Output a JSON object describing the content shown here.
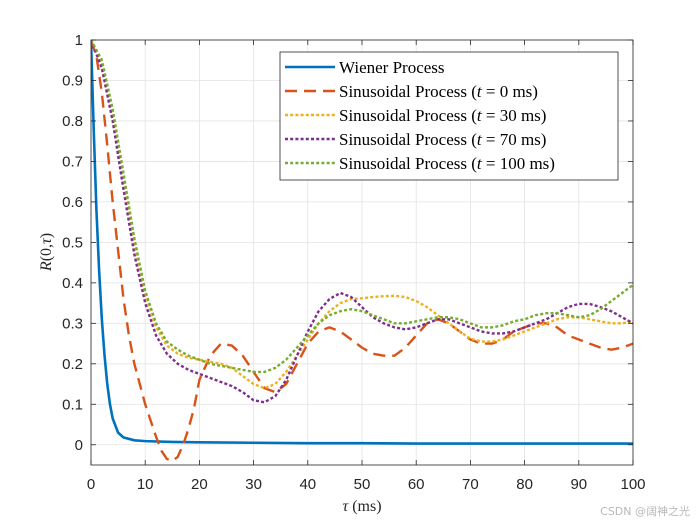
{
  "chart_data": {
    "type": "line",
    "title": "",
    "xlabel_var": "τ",
    "xlabel_unit": " (ms)",
    "ylabel_func": "R",
    "ylabel_args": "(0,",
    "ylabel_var": "τ",
    "ylabel_close": ")",
    "xlim": [
      0,
      100
    ],
    "ylim": [
      -0.05,
      1
    ],
    "xticks": [
      0,
      10,
      20,
      30,
      40,
      50,
      60,
      70,
      80,
      90,
      100
    ],
    "yticks": [
      0,
      0.1,
      0.2,
      0.3,
      0.4,
      0.5,
      0.6,
      0.7,
      0.8,
      0.9,
      1
    ],
    "ytick_labels": [
      "0",
      "0.1",
      "0.2",
      "0.3",
      "0.4",
      "0.5",
      "0.6",
      "0.7",
      "0.8",
      "0.9",
      "1"
    ],
    "grid": true,
    "legend_position": "top-right",
    "series": [
      {
        "name": "Wiener Process",
        "legend_prefix": "Wiener Process",
        "legend_var": "",
        "legend_value": "",
        "color": "#0072BD",
        "style": "solid",
        "x": [
          0,
          0.5,
          1,
          1.5,
          2,
          2.5,
          3,
          3.5,
          4,
          5,
          6,
          8,
          10,
          15,
          20,
          30,
          40,
          50,
          60,
          70,
          80,
          90,
          100
        ],
        "y": [
          1.0,
          0.78,
          0.58,
          0.43,
          0.31,
          0.22,
          0.15,
          0.1,
          0.065,
          0.03,
          0.018,
          0.011,
          0.009,
          0.007,
          0.006,
          0.005,
          0.004,
          0.004,
          0.003,
          0.003,
          0.003,
          0.003,
          0.003
        ]
      },
      {
        "name": "Sinusoidal Process (t = 0 ms)",
        "legend_prefix": "Sinusoidal Process (",
        "legend_var": "t",
        "legend_value": " = 0 ms)",
        "color": "#D95319",
        "style": "dashed",
        "x": [
          0,
          1,
          2,
          3,
          4,
          5,
          6,
          7,
          8,
          9,
          10,
          11,
          12,
          13,
          14,
          15,
          16,
          17,
          18,
          19,
          20,
          22,
          24,
          26,
          28,
          30,
          32,
          34,
          36,
          38,
          40,
          42,
          44,
          46,
          48,
          50,
          52,
          54,
          56,
          58,
          60,
          62,
          64,
          66,
          68,
          70,
          72,
          74,
          76,
          78,
          80,
          82,
          84,
          86,
          88,
          90,
          92,
          94,
          96,
          98,
          100
        ],
        "y": [
          1.0,
          0.96,
          0.87,
          0.74,
          0.6,
          0.48,
          0.36,
          0.27,
          0.2,
          0.15,
          0.1,
          0.06,
          0.02,
          -0.015,
          -0.035,
          -0.04,
          -0.03,
          0.0,
          0.04,
          0.09,
          0.16,
          0.22,
          0.25,
          0.245,
          0.22,
          0.18,
          0.14,
          0.13,
          0.15,
          0.2,
          0.25,
          0.28,
          0.29,
          0.28,
          0.26,
          0.24,
          0.225,
          0.22,
          0.22,
          0.24,
          0.27,
          0.3,
          0.31,
          0.3,
          0.28,
          0.26,
          0.25,
          0.25,
          0.26,
          0.28,
          0.29,
          0.3,
          0.3,
          0.29,
          0.27,
          0.26,
          0.25,
          0.24,
          0.235,
          0.24,
          0.25
        ]
      },
      {
        "name": "Sinusoidal Process (t = 30 ms)",
        "legend_prefix": "Sinusoidal Process (",
        "legend_var": "t",
        "legend_value": " = 30 ms)",
        "color": "#EDB120",
        "style": "dotted",
        "x": [
          0,
          2,
          4,
          6,
          8,
          10,
          12,
          14,
          16,
          18,
          20,
          22,
          24,
          26,
          28,
          30,
          32,
          34,
          36,
          38,
          40,
          42,
          44,
          46,
          48,
          50,
          52,
          54,
          56,
          58,
          60,
          62,
          64,
          66,
          68,
          70,
          72,
          74,
          76,
          78,
          80,
          82,
          84,
          86,
          88,
          90,
          92,
          94,
          96,
          98,
          100
        ],
        "y": [
          1.0,
          0.94,
          0.81,
          0.65,
          0.49,
          0.37,
          0.29,
          0.245,
          0.225,
          0.215,
          0.21,
          0.205,
          0.2,
          0.19,
          0.17,
          0.15,
          0.14,
          0.15,
          0.18,
          0.22,
          0.26,
          0.3,
          0.33,
          0.35,
          0.36,
          0.362,
          0.365,
          0.367,
          0.368,
          0.365,
          0.355,
          0.34,
          0.32,
          0.3,
          0.28,
          0.262,
          0.255,
          0.255,
          0.26,
          0.27,
          0.28,
          0.29,
          0.3,
          0.31,
          0.315,
          0.315,
          0.31,
          0.305,
          0.3,
          0.3,
          0.305
        ]
      },
      {
        "name": "Sinusoidal Process (t = 70 ms)",
        "legend_prefix": "Sinusoidal Process (",
        "legend_var": "t",
        "legend_value": " = 70 ms)",
        "color": "#7E2F8E",
        "style": "dotted",
        "x": [
          0,
          2,
          4,
          6,
          8,
          10,
          12,
          14,
          16,
          18,
          20,
          22,
          24,
          26,
          28,
          30,
          32,
          34,
          36,
          38,
          40,
          42,
          44,
          46,
          48,
          50,
          52,
          54,
          56,
          58,
          60,
          62,
          64,
          66,
          68,
          70,
          72,
          74,
          76,
          78,
          80,
          82,
          84,
          86,
          88,
          90,
          92,
          94,
          96,
          98,
          100
        ],
        "y": [
          1.0,
          0.93,
          0.8,
          0.63,
          0.47,
          0.35,
          0.27,
          0.225,
          0.2,
          0.185,
          0.175,
          0.165,
          0.155,
          0.145,
          0.13,
          0.11,
          0.105,
          0.12,
          0.16,
          0.22,
          0.28,
          0.33,
          0.36,
          0.375,
          0.365,
          0.34,
          0.315,
          0.3,
          0.29,
          0.285,
          0.29,
          0.3,
          0.31,
          0.31,
          0.3,
          0.29,
          0.28,
          0.275,
          0.275,
          0.28,
          0.29,
          0.3,
          0.31,
          0.325,
          0.34,
          0.348,
          0.348,
          0.34,
          0.33,
          0.315,
          0.3
        ]
      },
      {
        "name": "Sinusoidal Process (t = 100 ms)",
        "legend_prefix": "Sinusoidal Process (",
        "legend_var": "t",
        "legend_value": " = 100 ms)",
        "color": "#77AC30",
        "style": "dotted",
        "x": [
          0,
          2,
          4,
          6,
          8,
          10,
          12,
          14,
          16,
          18,
          20,
          22,
          24,
          26,
          28,
          30,
          32,
          34,
          36,
          38,
          40,
          42,
          44,
          46,
          48,
          50,
          52,
          54,
          56,
          58,
          60,
          62,
          64,
          66,
          68,
          70,
          72,
          74,
          76,
          78,
          80,
          82,
          84,
          86,
          88,
          90,
          92,
          94,
          96,
          98,
          100
        ],
        "y": [
          1.0,
          0.95,
          0.83,
          0.67,
          0.51,
          0.38,
          0.3,
          0.255,
          0.235,
          0.22,
          0.21,
          0.2,
          0.195,
          0.19,
          0.185,
          0.18,
          0.18,
          0.19,
          0.21,
          0.24,
          0.27,
          0.3,
          0.32,
          0.33,
          0.335,
          0.33,
          0.32,
          0.31,
          0.3,
          0.3,
          0.305,
          0.31,
          0.315,
          0.315,
          0.31,
          0.3,
          0.29,
          0.29,
          0.295,
          0.305,
          0.31,
          0.32,
          0.325,
          0.325,
          0.32,
          0.315,
          0.32,
          0.335,
          0.355,
          0.375,
          0.395
        ]
      }
    ]
  },
  "watermark": "CSDN @阔神之光"
}
